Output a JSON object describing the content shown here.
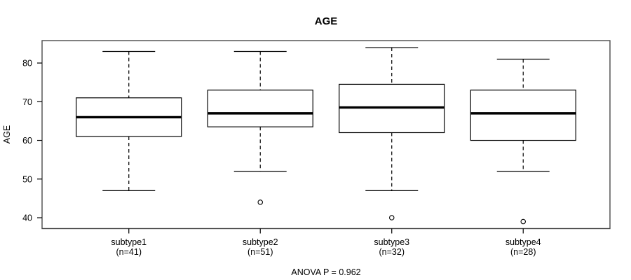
{
  "chart_data": {
    "type": "boxplot",
    "title": "AGE",
    "xlabel": "",
    "ylabel": "AGE",
    "annotation": "ANOVA P = 0.962",
    "yticks": [
      40,
      50,
      60,
      70,
      80
    ],
    "ylim": [
      37.2,
      85.8
    ],
    "grid": false,
    "legend": "none",
    "categories": [
      "subtype1",
      "subtype2",
      "subtype3",
      "subtype4"
    ],
    "n_labels": [
      "(n=41)",
      "(n=51)",
      "(n=32)",
      "(n=28)"
    ],
    "series": [
      {
        "label": "subtype1",
        "n": 41,
        "whisker_low": 47,
        "q1": 61,
        "median": 66,
        "q3": 71,
        "whisker_high": 83,
        "outliers": []
      },
      {
        "label": "subtype2",
        "n": 51,
        "whisker_low": 52,
        "q1": 63.5,
        "median": 67,
        "q3": 73,
        "whisker_high": 83,
        "outliers": [
          44
        ]
      },
      {
        "label": "subtype3",
        "n": 32,
        "whisker_low": 47,
        "q1": 62,
        "median": 68.5,
        "q3": 74.5,
        "whisker_high": 84,
        "outliers": [
          40
        ]
      },
      {
        "label": "subtype4",
        "n": 28,
        "whisker_low": 52,
        "q1": 60,
        "median": 67,
        "q3": 73,
        "whisker_high": 81,
        "outliers": [
          39
        ]
      }
    ],
    "colors": {
      "line": "#000000",
      "frame": "#4a4a4a",
      "box_fill": "#ffffff",
      "background": "#ffffff"
    }
  }
}
